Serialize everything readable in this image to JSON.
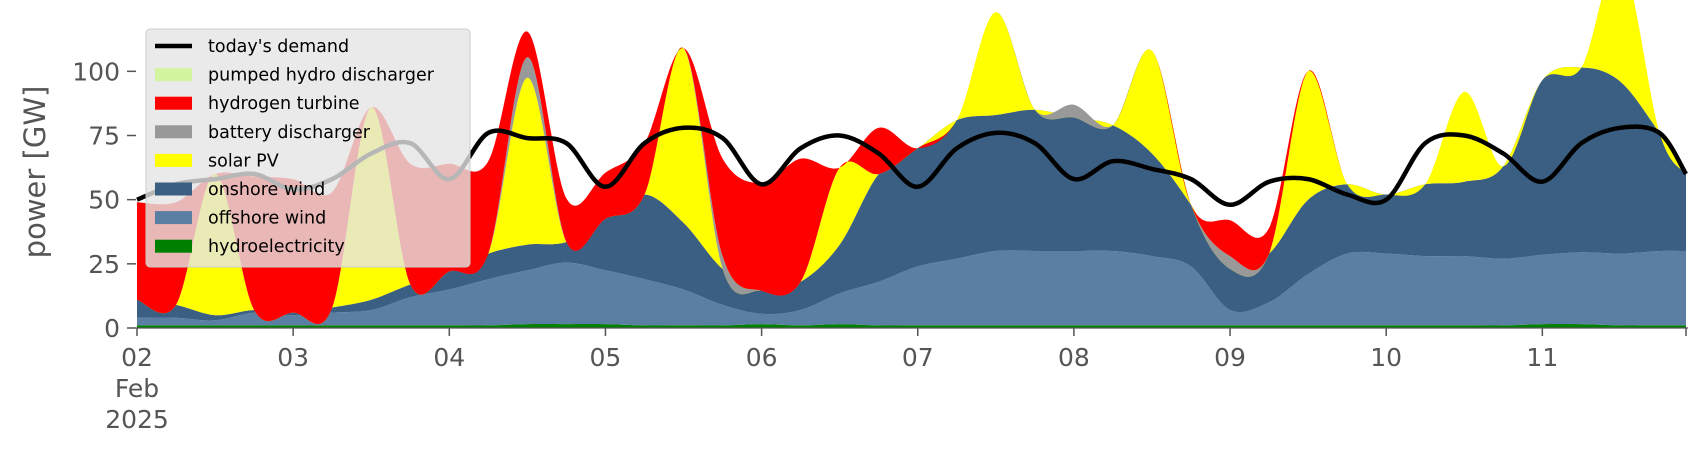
{
  "chart_data": {
    "type": "area",
    "ylabel": "power [GW]",
    "ylim": [
      0,
      120
    ],
    "yticks": [
      0,
      25,
      50,
      75,
      100
    ],
    "xlim": [
      0,
      9.92
    ],
    "x_ticks": [
      {
        "pos": 0,
        "label": "02"
      },
      {
        "pos": 1,
        "label": "03"
      },
      {
        "pos": 2,
        "label": "04"
      },
      {
        "pos": 3,
        "label": "05"
      },
      {
        "pos": 4,
        "label": "06"
      },
      {
        "pos": 5,
        "label": "07"
      },
      {
        "pos": 6,
        "label": "08"
      },
      {
        "pos": 7,
        "label": "09"
      },
      {
        "pos": 8,
        "label": "10"
      },
      {
        "pos": 9,
        "label": "11"
      }
    ],
    "x_sublabels": [
      "Feb",
      "2025"
    ],
    "x_unit": "days from 02 Feb 2025",
    "grid": false,
    "legend_position": "top-left",
    "x": [
      0.0,
      0.25,
      0.5,
      0.75,
      1.0,
      1.25,
      1.5,
      1.75,
      2.0,
      2.25,
      2.5,
      2.75,
      3.0,
      3.25,
      3.5,
      3.75,
      4.0,
      4.25,
      4.5,
      4.75,
      5.0,
      5.25,
      5.5,
      5.75,
      6.0,
      6.25,
      6.5,
      6.75,
      7.0,
      7.25,
      7.5,
      7.75,
      8.0,
      8.25,
      8.5,
      8.75,
      9.0,
      9.25,
      9.5,
      9.75,
      9.92
    ],
    "stack_series": [
      {
        "name": "hydroelectricity",
        "color": "#008000",
        "values": [
          1,
          1,
          1,
          1,
          1,
          1,
          1,
          1,
          1,
          1,
          1.5,
          1.5,
          1.5,
          1,
          1,
          1,
          1.5,
          1,
          1.5,
          1,
          1,
          1,
          1,
          1,
          1,
          1,
          1,
          1,
          1,
          1,
          1,
          1,
          1,
          1,
          1,
          1,
          1.5,
          1.5,
          1,
          1,
          1
        ]
      },
      {
        "name": "offshore wind",
        "color": "#5b7fa3",
        "values": [
          3,
          3,
          2,
          5,
          4,
          5,
          6,
          11,
          14,
          18,
          21,
          24,
          21,
          18,
          14,
          8,
          4,
          6,
          12,
          17,
          23,
          26,
          29,
          29,
          29,
          29,
          27,
          23,
          6,
          9,
          20,
          28,
          28,
          27,
          27,
          26,
          27,
          28,
          28,
          29,
          29
        ]
      },
      {
        "name": "onshore wind",
        "color": "#3a5f82",
        "values": [
          7,
          5,
          2,
          1,
          1,
          2,
          4,
          5,
          7,
          10,
          10,
          8,
          20,
          33,
          26,
          14,
          9,
          11,
          19,
          42,
          46,
          54,
          53,
          55,
          52,
          49,
          40,
          24,
          16,
          19,
          29,
          27,
          23,
          28,
          29,
          36,
          68,
          72,
          67,
          46,
          30
        ]
      },
      {
        "name": "solar PV",
        "color": "#ffff00",
        "values": [
          0,
          0,
          55,
          0,
          0,
          0,
          75,
          0,
          0,
          0,
          65,
          0,
          0,
          0,
          68,
          0,
          0,
          0,
          30,
          0,
          0,
          0,
          40,
          0,
          0,
          0,
          40,
          0,
          0,
          0,
          50,
          0,
          0,
          0,
          35,
          0,
          0,
          0,
          48,
          0,
          0
        ]
      },
      {
        "name": "battery discharger",
        "color": "#999999",
        "values": [
          0,
          0,
          0,
          0,
          0,
          0,
          0,
          0,
          0,
          0,
          8,
          0,
          0,
          0,
          0,
          5,
          0,
          0,
          0,
          0,
          0,
          0,
          0,
          0,
          5,
          0,
          0,
          0,
          5,
          0,
          0,
          0,
          0,
          0,
          0,
          0,
          0,
          0,
          0,
          0,
          0
        ]
      },
      {
        "name": "hydrogen turbine",
        "color": "#ff0000",
        "values": [
          38,
          40,
          0,
          52,
          52,
          45,
          0,
          47,
          42,
          36,
          10,
          17,
          18,
          20,
          0,
          38,
          42,
          48,
          0,
          18,
          0,
          0,
          0,
          0,
          0,
          0,
          0,
          0,
          14,
          10,
          0,
          0,
          0,
          0,
          0,
          0,
          0,
          0,
          0,
          0,
          0
        ]
      },
      {
        "name": "pumped hydro discharger",
        "color": "#d4f5a0",
        "values": [
          0,
          0,
          0,
          0,
          0,
          0,
          0,
          0,
          0,
          0,
          0,
          0,
          0,
          0,
          0,
          0,
          0,
          0,
          0,
          0,
          0,
          0,
          0,
          0,
          0,
          0,
          0,
          0,
          0,
          0,
          0,
          0,
          0,
          0,
          0,
          0,
          0,
          0,
          0,
          0,
          0
        ]
      }
    ],
    "demand": {
      "name": "today's demand",
      "color": "#000000",
      "values": [
        50,
        56,
        58,
        60,
        54,
        58,
        68,
        72,
        58,
        76,
        74,
        72,
        55,
        72,
        78,
        74,
        56,
        70,
        75,
        68,
        55,
        70,
        76,
        72,
        58,
        65,
        62,
        58,
        48,
        57,
        58,
        52,
        50,
        72,
        75,
        68,
        57,
        72,
        78,
        76,
        60
      ]
    },
    "legend": [
      "today's demand",
      "pumped hydro discharger",
      "hydrogen turbine",
      "battery discharger",
      "solar PV",
      "onshore wind",
      "offshore wind",
      "hydroelectricity"
    ]
  }
}
